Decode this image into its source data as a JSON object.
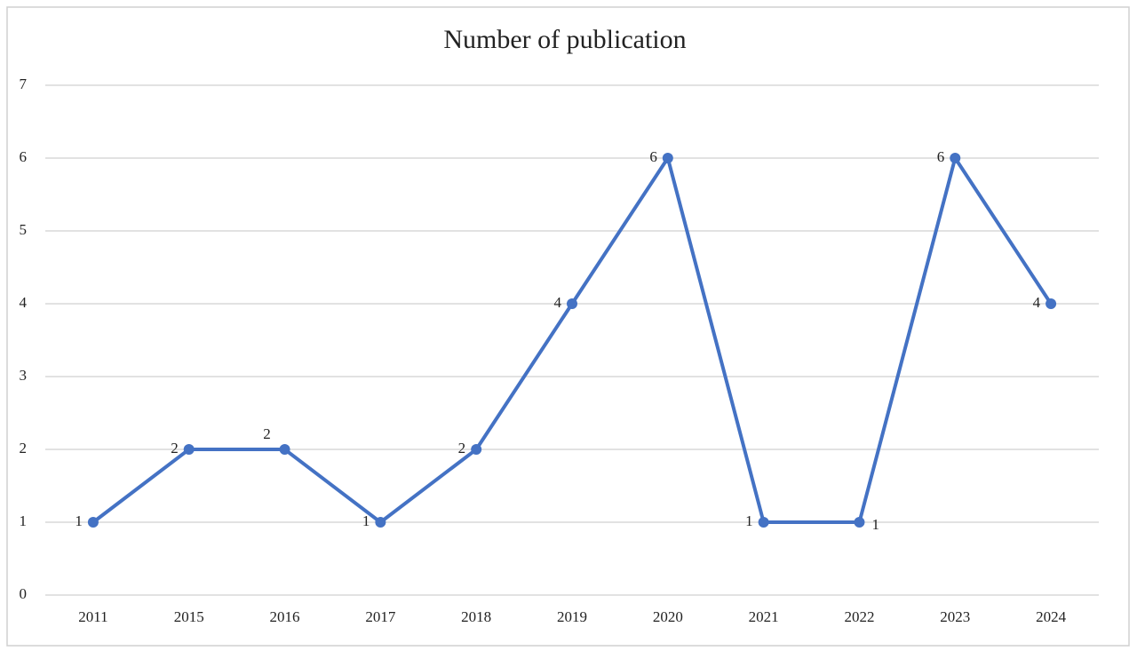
{
  "chart_data": {
    "type": "line",
    "title": "Number of publication",
    "categories": [
      "2011",
      "2015",
      "2016",
      "2017",
      "2018",
      "2019",
      "2020",
      "2021",
      "2022",
      "2023",
      "2024"
    ],
    "series": [
      {
        "name": "Number of publication",
        "color": "#4472c4",
        "values": [
          1,
          2,
          2,
          1,
          2,
          4,
          6,
          1,
          1,
          6,
          4
        ]
      }
    ],
    "ylim": [
      0,
      7
    ],
    "yticks": [
      0,
      1,
      2,
      3,
      4,
      5,
      6,
      7
    ],
    "grid": true
  }
}
